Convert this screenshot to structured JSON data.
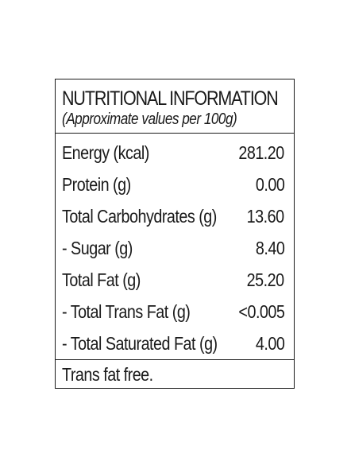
{
  "label": {
    "title": "NUTRITIONAL INFORMATION",
    "subtitle": "(Approximate values per 100g)",
    "rows": [
      {
        "label": "Energy (kcal)",
        "value": "281.20"
      },
      {
        "label": "Protein (g)",
        "value": "0.00"
      },
      {
        "label": "Total Carbohydrates (g)",
        "value": "13.60"
      },
      {
        "label": "- Sugar (g)",
        "value": "8.40"
      },
      {
        "label": "Total Fat (g)",
        "value": "25.20"
      },
      {
        "label": "- Total Trans Fat (g)",
        "value": "<0.005"
      },
      {
        "label": "- Total Saturated Fat (g)",
        "value": "4.00"
      }
    ],
    "footer": "Trans fat free."
  }
}
